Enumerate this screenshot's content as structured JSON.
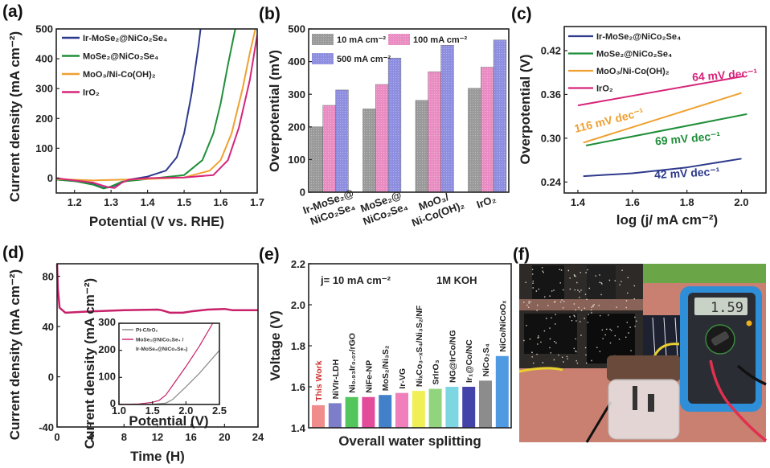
{
  "chart_data": [
    {
      "panel_label": "(a)",
      "type": "line",
      "xlabel": "Potential (V vs. RHE)",
      "ylabel": "Current density (mA cm⁻²)",
      "xlim": [
        1.15,
        1.7
      ],
      "ylim": [
        -50,
        500
      ],
      "xticks": [
        "1.2",
        "1.3",
        "1.4",
        "1.5",
        "1.6",
        "1.7"
      ],
      "yticks": [
        "0",
        "100",
        "200",
        "300",
        "400",
        "500"
      ],
      "legend_position": "top-left",
      "series": [
        {
          "name": "Ir-MoSe₂@NiCo₂Se₄",
          "color": "#2e3a8c",
          "points": [
            [
              1.15,
              -5
            ],
            [
              1.2,
              -10
            ],
            [
              1.25,
              -20
            ],
            [
              1.28,
              -33
            ],
            [
              1.3,
              -30
            ],
            [
              1.32,
              -20
            ],
            [
              1.35,
              -5
            ],
            [
              1.4,
              5
            ],
            [
              1.45,
              25
            ],
            [
              1.48,
              70
            ],
            [
              1.5,
              150
            ],
            [
              1.52,
              280
            ],
            [
              1.54,
              450
            ],
            [
              1.545,
              500
            ]
          ]
        },
        {
          "name": "MoSe₂@NiCo₂Se₄",
          "color": "#1f8f3a",
          "points": [
            [
              1.15,
              -5
            ],
            [
              1.2,
              -10
            ],
            [
              1.25,
              -22
            ],
            [
              1.28,
              -35
            ],
            [
              1.3,
              -28
            ],
            [
              1.33,
              -12
            ],
            [
              1.4,
              -3
            ],
            [
              1.5,
              10
            ],
            [
              1.55,
              60
            ],
            [
              1.58,
              150
            ],
            [
              1.6,
              250
            ],
            [
              1.62,
              380
            ],
            [
              1.64,
              500
            ]
          ]
        },
        {
          "name": "MoO₃/Ni-Co(OH)₂",
          "color": "#f0a030",
          "points": [
            [
              1.15,
              -3
            ],
            [
              1.25,
              -8
            ],
            [
              1.3,
              -6
            ],
            [
              1.4,
              -3
            ],
            [
              1.5,
              2
            ],
            [
              1.57,
              25
            ],
            [
              1.6,
              60
            ],
            [
              1.63,
              150
            ],
            [
              1.66,
              300
            ],
            [
              1.68,
              420
            ],
            [
              1.695,
              500
            ]
          ]
        },
        {
          "name": "IrO₂",
          "color": "#d6257a",
          "points": [
            [
              1.15,
              0
            ],
            [
              1.2,
              -8
            ],
            [
              1.25,
              -15
            ],
            [
              1.29,
              -30
            ],
            [
              1.31,
              -33
            ],
            [
              1.33,
              -15
            ],
            [
              1.35,
              -5
            ],
            [
              1.4,
              0
            ],
            [
              1.5,
              2
            ],
            [
              1.58,
              10
            ],
            [
              1.62,
              60
            ],
            [
              1.65,
              170
            ],
            [
              1.68,
              330
            ],
            [
              1.7,
              480
            ]
          ]
        }
      ]
    },
    {
      "panel_label": "(b)",
      "type": "bar",
      "ylabel": "Overpotential (mV)",
      "ylim": [
        0,
        500
      ],
      "yticks": [
        "0",
        "100",
        "200",
        "300",
        "400",
        "500"
      ],
      "categories": [
        [
          "Ir-MoSe₂@",
          "NiCo₂Se₄"
        ],
        [
          "MoSe₂@",
          "NiCo₂Se₄"
        ],
        [
          "MoO₃/",
          "Ni-Co(OH)₂"
        ],
        [
          "IrO₂",
          ""
        ]
      ],
      "legend_position": "top-left",
      "series": [
        {
          "name": "10 mA cm⁻²",
          "color": "#9a9a9a",
          "values": [
            200,
            255,
            281,
            318
          ]
        },
        {
          "name": "100 mA cm⁻²",
          "color": "#e98cc2",
          "values": [
            266,
            330,
            369,
            383
          ]
        },
        {
          "name": "500 mA cm⁻²",
          "color": "#8e8ee0",
          "values": [
            313,
            411,
            450,
            466
          ]
        }
      ]
    },
    {
      "panel_label": "(c)",
      "type": "line",
      "xlabel": "log (j/ mA cm⁻²)",
      "ylabel": "Overpotential (V)",
      "xlim": [
        1.35,
        2.09
      ],
      "ylim": [
        0.225,
        0.453
      ],
      "xticks": [
        "1.4",
        "1.6",
        "1.8",
        "2.0"
      ],
      "yticks": [
        "0.24",
        "0.30",
        "0.36",
        "0.42"
      ],
      "legend_position": "top-left",
      "series": [
        {
          "name": "Ir-MoSe₂@NiCo₂Se₄",
          "color": "#2e3a8c",
          "slope_label": "42 mV dec⁻¹",
          "points": [
            [
              1.42,
              0.248
            ],
            [
              1.6,
              0.252
            ],
            [
              1.8,
              0.26
            ],
            [
              2.0,
              0.272
            ]
          ]
        },
        {
          "name": "MoSe₂@NiCo₂Se₄",
          "color": "#1f8f3a",
          "slope_label": "69 mV dec⁻¹",
          "points": [
            [
              1.43,
              0.29
            ],
            [
              2.02,
              0.333
            ]
          ]
        },
        {
          "name": "MoO₃/Ni-Co(OH)₂",
          "color": "#f0a030",
          "slope_label": "116 mV dec⁻¹",
          "points": [
            [
              1.42,
              0.294
            ],
            [
              2.0,
              0.362
            ]
          ]
        },
        {
          "name": "IrO₂",
          "color": "#d6257a",
          "slope_label": "64 mV dec⁻¹",
          "points": [
            [
              1.4,
              0.345
            ],
            [
              2.01,
              0.385
            ]
          ]
        }
      ]
    },
    {
      "panel_label": "(d)",
      "type": "line",
      "xlabel": "Time (H)",
      "ylabel": "Current density (mA cm⁻²)",
      "xlim": [
        0,
        24
      ],
      "ylim": [
        -40,
        90
      ],
      "xticks": [
        "0",
        "4",
        "8",
        "12",
        "16",
        "20",
        "24"
      ],
      "yticks": [
        "-40",
        "0",
        "40",
        "80"
      ],
      "series": [
        {
          "color": "#c8206a",
          "points": [
            [
              0,
              90
            ],
            [
              0.1,
              70
            ],
            [
              0.3,
              55
            ],
            [
              1,
              51
            ],
            [
              4,
              52
            ],
            [
              8,
              53
            ],
            [
              12,
              53.5
            ],
            [
              12.5,
              53
            ],
            [
              13.5,
              51
            ],
            [
              15,
              51
            ],
            [
              16,
              52
            ],
            [
              18,
              53.5
            ],
            [
              20,
              54
            ],
            [
              21,
              53
            ],
            [
              24,
              53
            ]
          ]
        }
      ],
      "inset": {
        "type": "line",
        "xlabel": "Potential (V)",
        "ylabel": "Current density (mA cm⁻²)",
        "xlim": [
          1.0,
          2.5
        ],
        "ylim": [
          0,
          300
        ],
        "xticks": [
          "1.0",
          "1.5",
          "2.0",
          "2.5"
        ],
        "yticks": [
          "0",
          "100",
          "200",
          "300"
        ],
        "legend_position": "top-left",
        "series": [
          {
            "name": "Pt-C/IrO₂",
            "color": "#888888",
            "points": [
              [
                1,
                0
              ],
              [
                1.5,
                1
              ],
              [
                1.7,
                5
              ],
              [
                1.8,
                18
              ],
              [
                2.0,
                65
              ],
              [
                2.2,
                115
              ],
              [
                2.5,
                200
              ]
            ]
          },
          {
            "name": "MoSe₂@NiCo₂Se₄ /",
            "name_line2": "Ir-MoSe₂@NiCo₂Se₄)",
            "color": "#c8206a",
            "points": [
              [
                1,
                0
              ],
              [
                1.3,
                2
              ],
              [
                1.5,
                8
              ],
              [
                1.6,
                15
              ],
              [
                1.7,
                35
              ],
              [
                1.8,
                70
              ],
              [
                2.0,
                140
              ],
              [
                2.2,
                215
              ],
              [
                2.4,
                300
              ]
            ]
          }
        ]
      }
    },
    {
      "panel_label": "(e)",
      "type": "bar",
      "xlabel": "Overall water splitting",
      "ylabel": "Voltage (V)",
      "ylim": [
        1.4,
        2.2
      ],
      "yticks": [
        "1.4",
        "1.6",
        "1.8",
        "2.0",
        "2.2"
      ],
      "annotations": [
        "j= 10 mA cm⁻²",
        "1M KOH"
      ],
      "categories": [
        "This Work",
        "NiVIr-LDH",
        "Ni₀.₉₃Ir₀.₀₇/rGO",
        "NiFe-NP",
        "MoS₂/Ni₃S₂",
        "Ir-VG",
        "NiₓCo₃₋ₓS₄/Ni₃S₂/NF",
        "SrIrO₃",
        "NG@IrCo/NG",
        "Ir₁@Co/NC",
        "NiCo₂S₄",
        "NiCo/NiCoOₓ"
      ],
      "values": [
        1.51,
        1.52,
        1.55,
        1.55,
        1.56,
        1.57,
        1.58,
        1.59,
        1.6,
        1.6,
        1.63,
        1.75
      ],
      "colors": [
        "#f08080",
        "#6f6fc4",
        "#3fbf4a",
        "#e0388f",
        "#2f72c4",
        "#f071b4",
        "#eeee44",
        "#84d070",
        "#6fd3e0",
        "#2f2fa0",
        "#808080",
        "#3d8fe0"
      ],
      "highlight_label_color": "#d03030"
    }
  ],
  "photo": {
    "panel_label": "(f)",
    "multimeter_display": "1.59"
  }
}
